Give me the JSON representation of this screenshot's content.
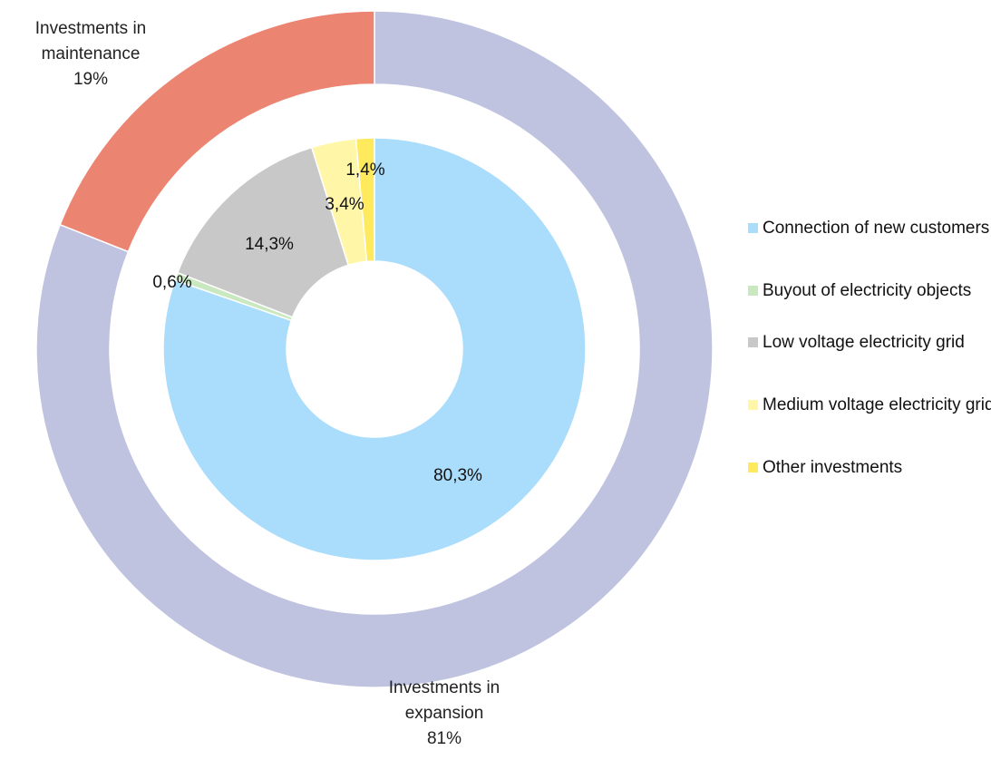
{
  "chart_data": {
    "type": "donut",
    "outer": {
      "categories": [
        "Investments in expansion",
        "Investments in maintenance"
      ],
      "values": [
        81,
        19
      ],
      "value_labels": [
        "81%",
        "19%"
      ],
      "colors": [
        "#bfc3e0",
        "#ec8472"
      ]
    },
    "inner": {
      "categories": [
        "Connection of new customers",
        "Buyout of electricity objects",
        "Low voltage electricity grid",
        "Medium voltage electricity grid",
        "Other investments"
      ],
      "values": [
        80.3,
        0.6,
        14.3,
        3.4,
        1.4
      ],
      "value_labels": [
        "80,3%",
        "0,6%",
        "14,3%",
        "3,4%",
        "1,4%"
      ],
      "colors": [
        "#aadcfc",
        "#c9e8c0",
        "#c8c8c8",
        "#fff6a8",
        "#ffe95c"
      ]
    },
    "legend": "right"
  }
}
